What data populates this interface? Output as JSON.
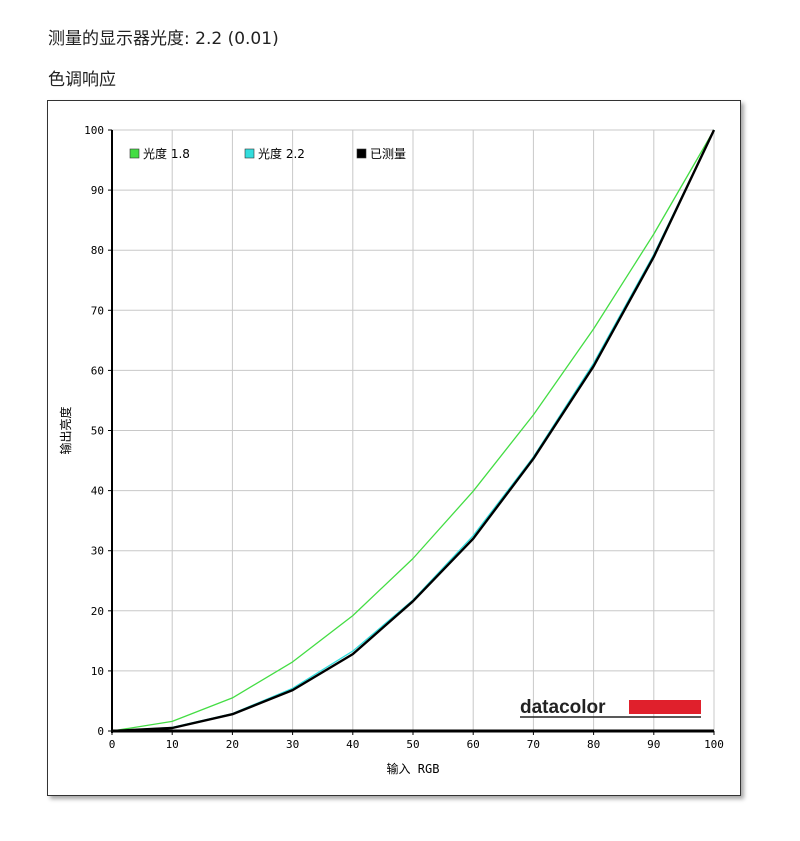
{
  "header": {
    "measured_label": "测量的显示器光度:",
    "measured_value": "2.2 (0.01)",
    "subtitle": "色调响应"
  },
  "chart_data": {
    "type": "line",
    "xlabel": "输入 RGB",
    "ylabel": "输出亮度",
    "xlim": [
      0,
      100
    ],
    "ylim": [
      0,
      100
    ],
    "xticks": [
      0,
      10,
      20,
      30,
      40,
      50,
      60,
      70,
      80,
      90,
      100
    ],
    "yticks": [
      0,
      10,
      20,
      30,
      40,
      50,
      60,
      70,
      80,
      90,
      100
    ],
    "grid": true,
    "legend_position": "top-left",
    "series": [
      {
        "name": "光度 1.8",
        "color": "#44dd44",
        "x": [
          0,
          10,
          20,
          30,
          40,
          50,
          60,
          70,
          80,
          90,
          100
        ],
        "y": [
          0,
          1.6,
          5.5,
          11.5,
          19.2,
          28.7,
          39.9,
          52.6,
          66.9,
          82.7,
          100
        ]
      },
      {
        "name": "光度 2.2",
        "color": "#33dddd",
        "x": [
          0,
          10,
          20,
          30,
          40,
          50,
          60,
          70,
          80,
          90,
          100
        ],
        "y": [
          0,
          0.6,
          2.9,
          7.1,
          13.3,
          21.8,
          32.5,
          45.6,
          61.2,
          79.3,
          100
        ]
      },
      {
        "name": "已测量",
        "color": "#000000",
        "x": [
          0,
          10,
          20,
          30,
          40,
          50,
          60,
          70,
          80,
          90,
          100
        ],
        "y": [
          0,
          0.5,
          2.8,
          6.8,
          12.8,
          21.6,
          32.0,
          45.3,
          60.7,
          78.9,
          100
        ]
      }
    ]
  },
  "branding": {
    "logo_text": "datacolor",
    "logo_bar_color": "#e0202c"
  }
}
